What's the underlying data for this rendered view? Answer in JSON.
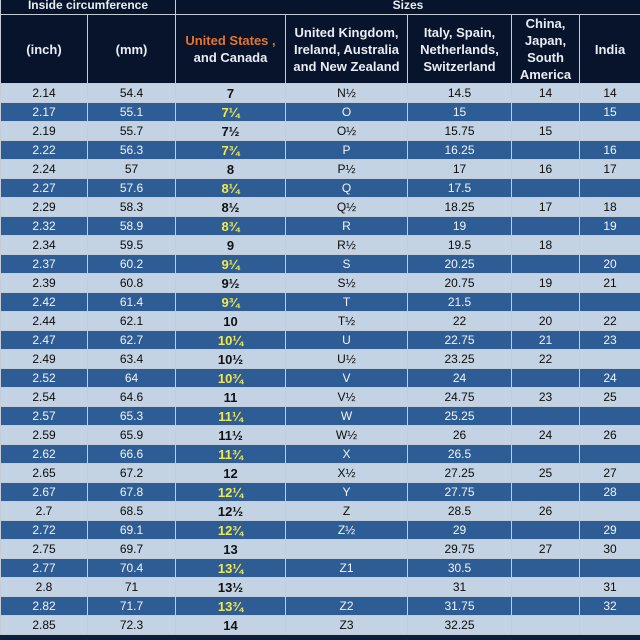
{
  "headers": {
    "inside_circumference": "Inside circumference",
    "sizes": "Sizes",
    "inch": "(inch)",
    "mm": "(mm)",
    "us_line1": "United States ,",
    "us_line2": "and Canada",
    "uk": "United Kingdom, Ireland, Australia and New Zealand",
    "italy": "Italy, Spain, Netherlands, Switzerland",
    "china": "China, Japan, South America",
    "india": "India"
  },
  "colors": {
    "header_bg": "#07142c",
    "row_light": "#c3d3e4",
    "row_dark": "#2e5d95",
    "us_header_accent": "#e8742a",
    "us_size_on_dark": "#f4e84a"
  },
  "rows": [
    {
      "inch": "2.14",
      "mm": "54.4",
      "us": "7",
      "uk": "N½",
      "eu": "14.5",
      "cn": "14",
      "in": "14"
    },
    {
      "inch": "2.17",
      "mm": "55.1",
      "us": "7¼",
      "uk": "O",
      "eu": "15",
      "cn": "",
      "in": "15"
    },
    {
      "inch": "2.19",
      "mm": "55.7",
      "us": "7½",
      "uk": "O½",
      "eu": "15.75",
      "cn": "15",
      "in": ""
    },
    {
      "inch": "2.22",
      "mm": "56.3",
      "us": "7¾",
      "uk": "P",
      "eu": "16.25",
      "cn": "",
      "in": "16"
    },
    {
      "inch": "2.24",
      "mm": "57",
      "us": "8",
      "uk": "P½",
      "eu": "17",
      "cn": "16",
      "in": "17"
    },
    {
      "inch": "2.27",
      "mm": "57.6",
      "us": "8¼",
      "uk": "Q",
      "eu": "17.5",
      "cn": "",
      "in": ""
    },
    {
      "inch": "2.29",
      "mm": "58.3",
      "us": "8½",
      "uk": "Q½",
      "eu": "18.25",
      "cn": "17",
      "in": "18"
    },
    {
      "inch": "2.32",
      "mm": "58.9",
      "us": "8¾",
      "uk": "R",
      "eu": "19",
      "cn": "",
      "in": "19"
    },
    {
      "inch": "2.34",
      "mm": "59.5",
      "us": "9",
      "uk": "R½",
      "eu": "19.5",
      "cn": "18",
      "in": ""
    },
    {
      "inch": "2.37",
      "mm": "60.2",
      "us": "9¼",
      "uk": "S",
      "eu": "20.25",
      "cn": "",
      "in": "20"
    },
    {
      "inch": "2.39",
      "mm": "60.8",
      "us": "9½",
      "uk": "S½",
      "eu": "20.75",
      "cn": "19",
      "in": "21"
    },
    {
      "inch": "2.42",
      "mm": "61.4",
      "us": "9¾",
      "uk": "T",
      "eu": "21.5",
      "cn": "",
      "in": ""
    },
    {
      "inch": "2.44",
      "mm": "62.1",
      "us": "10",
      "uk": "T½",
      "eu": "22",
      "cn": "20",
      "in": "22"
    },
    {
      "inch": "2.47",
      "mm": "62.7",
      "us": "10¼",
      "uk": "U",
      "eu": "22.75",
      "cn": "21",
      "in": "23"
    },
    {
      "inch": "2.49",
      "mm": "63.4",
      "us": "10½",
      "uk": "U½",
      "eu": "23.25",
      "cn": "22",
      "in": ""
    },
    {
      "inch": "2.52",
      "mm": "64",
      "us": "10¾",
      "uk": "V",
      "eu": "24",
      "cn": "",
      "in": "24"
    },
    {
      "inch": "2.54",
      "mm": "64.6",
      "us": "11",
      "uk": "V½",
      "eu": "24.75",
      "cn": "23",
      "in": "25"
    },
    {
      "inch": "2.57",
      "mm": "65.3",
      "us": "11¼",
      "uk": "W",
      "eu": "25.25",
      "cn": "",
      "in": ""
    },
    {
      "inch": "2.59",
      "mm": "65.9",
      "us": "11½",
      "uk": "W½",
      "eu": "26",
      "cn": "24",
      "in": "26"
    },
    {
      "inch": "2.62",
      "mm": "66.6",
      "us": "11¾",
      "uk": "X",
      "eu": "26.5",
      "cn": "",
      "in": ""
    },
    {
      "inch": "2.65",
      "mm": "67.2",
      "us": "12",
      "uk": "X½",
      "eu": "27.25",
      "cn": "25",
      "in": "27"
    },
    {
      "inch": "2.67",
      "mm": "67.8",
      "us": "12¼",
      "uk": "Y",
      "eu": "27.75",
      "cn": "",
      "in": "28"
    },
    {
      "inch": "2.7",
      "mm": "68.5",
      "us": "12½",
      "uk": "Z",
      "eu": "28.5",
      "cn": "26",
      "in": ""
    },
    {
      "inch": "2.72",
      "mm": "69.1",
      "us": "12¾",
      "uk": "Z½",
      "eu": "29",
      "cn": "",
      "in": "29"
    },
    {
      "inch": "2.75",
      "mm": "69.7",
      "us": "13",
      "uk": "",
      "eu": "29.75",
      "cn": "27",
      "in": "30"
    },
    {
      "inch": "2.77",
      "mm": "70.4",
      "us": "13¼",
      "uk": "Z1",
      "eu": "30.5",
      "cn": "",
      "in": ""
    },
    {
      "inch": "2.8",
      "mm": "71",
      "us": "13½",
      "uk": "",
      "eu": "31",
      "cn": "",
      "in": "31"
    },
    {
      "inch": "2.82",
      "mm": "71.7",
      "us": "13¾",
      "uk": "Z2",
      "eu": "31.75",
      "cn": "",
      "in": "32"
    },
    {
      "inch": "2.85",
      "mm": "72.3",
      "us": "14",
      "uk": "Z3",
      "eu": "32.25",
      "cn": "",
      "in": ""
    }
  ]
}
